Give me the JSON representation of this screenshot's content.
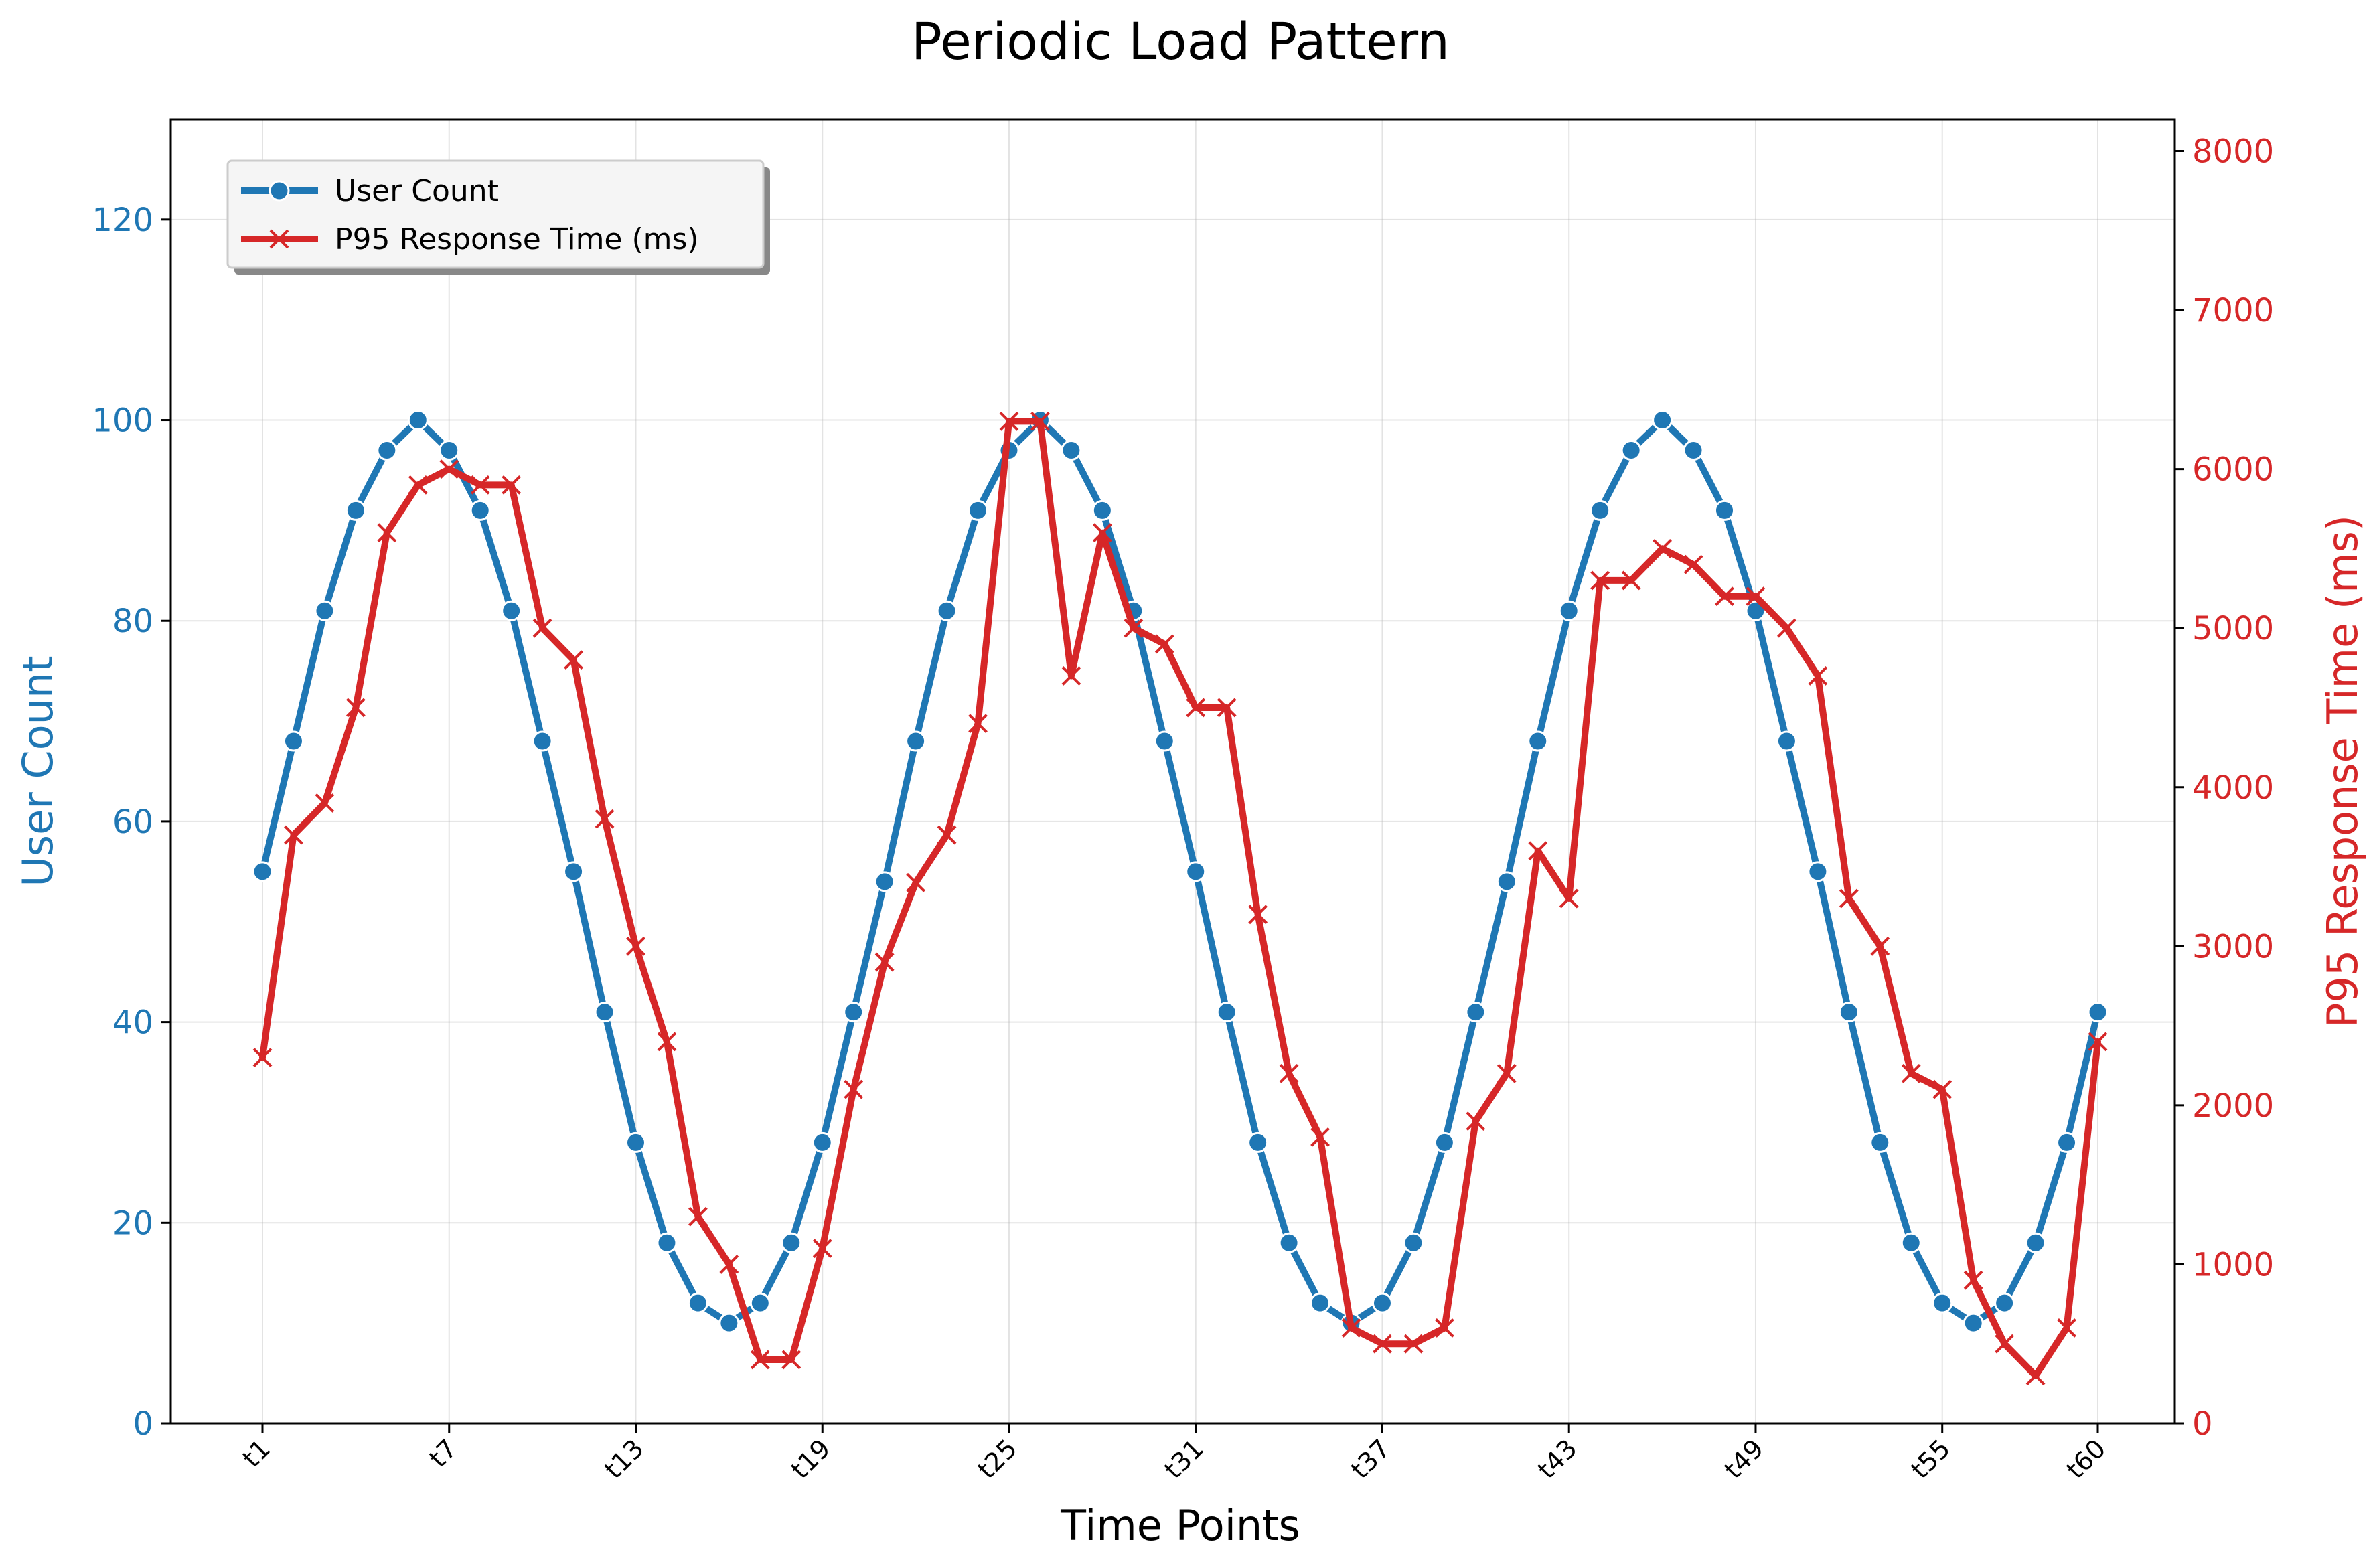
{
  "chart_data": {
    "type": "line",
    "title": "Periodic Load Pattern",
    "xlabel": "Time Points",
    "ylabel_left": "User Count",
    "ylabel_right": "P95 Response Time (ms)",
    "ylim_left": [
      0,
      130
    ],
    "ylim_right": [
      0,
      8200
    ],
    "yticks_left": [
      0,
      20,
      40,
      60,
      80,
      100,
      120
    ],
    "yticks_right": [
      0,
      1000,
      2000,
      3000,
      4000,
      5000,
      6000,
      7000,
      8000
    ],
    "grid": true,
    "legend_position": "upper-left",
    "x_tick_labels": [
      "t1",
      "t7",
      "t13",
      "t19",
      "t25",
      "t31",
      "t37",
      "t43",
      "t49",
      "t55",
      "t60"
    ],
    "x": [
      "t1",
      "t2",
      "t3",
      "t4",
      "t5",
      "t6",
      "t7",
      "t8",
      "t9",
      "t10",
      "t11",
      "t12",
      "t13",
      "t14",
      "t15",
      "t16",
      "t17",
      "t18",
      "t19",
      "t20",
      "t21",
      "t22",
      "t23",
      "t24",
      "t25",
      "t26",
      "t27",
      "t28",
      "t29",
      "t30",
      "t31",
      "t32",
      "t33",
      "t34",
      "t35",
      "t36",
      "t37",
      "t38",
      "t39",
      "t40",
      "t41",
      "t42",
      "t43",
      "t44",
      "t45",
      "t46",
      "t47",
      "t48",
      "t49",
      "t50",
      "t51",
      "t52",
      "t53",
      "t54",
      "t55",
      "t56",
      "t57",
      "t58",
      "t59",
      "t60"
    ],
    "series": [
      {
        "name": "User Count",
        "axis": "left",
        "color": "#1f77b4",
        "marker": "circle",
        "values": [
          55,
          68,
          81,
          91,
          97,
          100,
          97,
          91,
          81,
          68,
          55,
          41,
          28,
          18,
          12,
          10,
          12,
          18,
          28,
          41,
          54,
          68,
          81,
          91,
          97,
          100,
          97,
          91,
          81,
          68,
          55,
          41,
          28,
          18,
          12,
          10,
          12,
          18,
          28,
          41,
          54,
          68,
          81,
          91,
          97,
          100,
          97,
          91,
          81,
          68,
          55,
          41,
          28,
          18,
          12,
          10,
          12,
          18,
          28,
          41
        ]
      },
      {
        "name": "P95 Response Time (ms)",
        "axis": "right",
        "color": "#d62728",
        "marker": "x",
        "values": [
          2300,
          3700,
          3900,
          4500,
          5600,
          5900,
          6000,
          5900,
          5900,
          5000,
          4800,
          3800,
          3000,
          2400,
          1300,
          1000,
          400,
          400,
          1100,
          2100,
          2900,
          3400,
          3700,
          4400,
          6300,
          6300,
          4700,
          5600,
          5000,
          4900,
          4500,
          4500,
          3200,
          2200,
          1800,
          600,
          500,
          500,
          600,
          1900,
          2200,
          3600,
          3300,
          5300,
          5300,
          5500,
          5400,
          5200,
          5200,
          5000,
          4700,
          3300,
          3000,
          2200,
          2100,
          900,
          500,
          300,
          600,
          2400
        ]
      }
    ]
  }
}
